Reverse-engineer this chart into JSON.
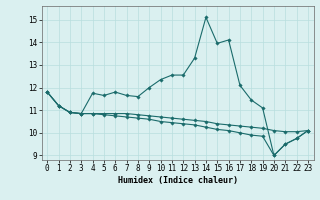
{
  "title": "",
  "xlabel": "Humidex (Indice chaleur)",
  "background_color": "#daf0f0",
  "grid_color": "#b8dede",
  "line_color": "#1a6b6b",
  "xlim": [
    -0.5,
    23.5
  ],
  "ylim": [
    8.8,
    15.6
  ],
  "yticks": [
    9,
    10,
    11,
    12,
    13,
    14,
    15
  ],
  "xticks": [
    0,
    1,
    2,
    3,
    4,
    5,
    6,
    7,
    8,
    9,
    10,
    11,
    12,
    13,
    14,
    15,
    16,
    17,
    18,
    19,
    20,
    21,
    22,
    23
  ],
  "series": [
    [
      11.8,
      11.2,
      10.9,
      10.85,
      11.75,
      11.65,
      11.8,
      11.65,
      11.6,
      12.0,
      12.35,
      12.55,
      12.55,
      13.3,
      15.1,
      13.95,
      14.1,
      12.1,
      11.45,
      11.1,
      9.0,
      9.5,
      9.75,
      10.1
    ],
    [
      11.8,
      11.2,
      10.9,
      10.85,
      10.85,
      10.85,
      10.85,
      10.85,
      10.8,
      10.75,
      10.7,
      10.65,
      10.6,
      10.55,
      10.5,
      10.4,
      10.35,
      10.3,
      10.25,
      10.2,
      10.1,
      10.05,
      10.05,
      10.1
    ],
    [
      11.8,
      11.2,
      10.9,
      10.85,
      10.85,
      10.8,
      10.75,
      10.7,
      10.65,
      10.6,
      10.5,
      10.45,
      10.4,
      10.35,
      10.25,
      10.15,
      10.1,
      10.0,
      9.9,
      9.85,
      9.0,
      9.5,
      9.75,
      10.1
    ]
  ],
  "xlabel_fontsize": 6,
  "tick_fontsize": 5.5
}
